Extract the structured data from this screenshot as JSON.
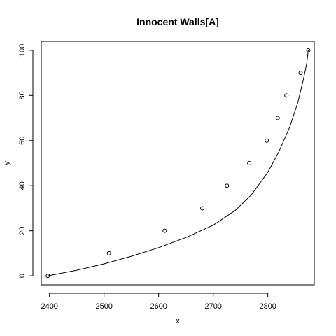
{
  "chart_data": {
    "type": "scatter",
    "title": "Innocent Walls[A]",
    "xlabel": "x",
    "ylabel": "y",
    "xlim": [
      2385,
      2885
    ],
    "ylim": [
      -4,
      104
    ],
    "xticks": [
      2400,
      2500,
      2600,
      2700,
      2800
    ],
    "yticks": [
      0,
      20,
      40,
      60,
      80,
      100
    ],
    "points": {
      "x": [
        2397,
        2509,
        2611,
        2680,
        2725,
        2766,
        2798,
        2818,
        2834,
        2860,
        2874
      ],
      "y": [
        0,
        10,
        20,
        30,
        40,
        50,
        60,
        70,
        80,
        90,
        100
      ]
    },
    "fitted_curve": {
      "x": [
        2397,
        2450,
        2500,
        2550,
        2600,
        2650,
        2700,
        2740,
        2770,
        2800,
        2820,
        2840,
        2855,
        2865,
        2871,
        2874
      ],
      "y": [
        0,
        2.5,
        5.3,
        8.7,
        12.5,
        17,
        22.5,
        29,
        36,
        46,
        55,
        66,
        77,
        87,
        94,
        100
      ]
    }
  }
}
